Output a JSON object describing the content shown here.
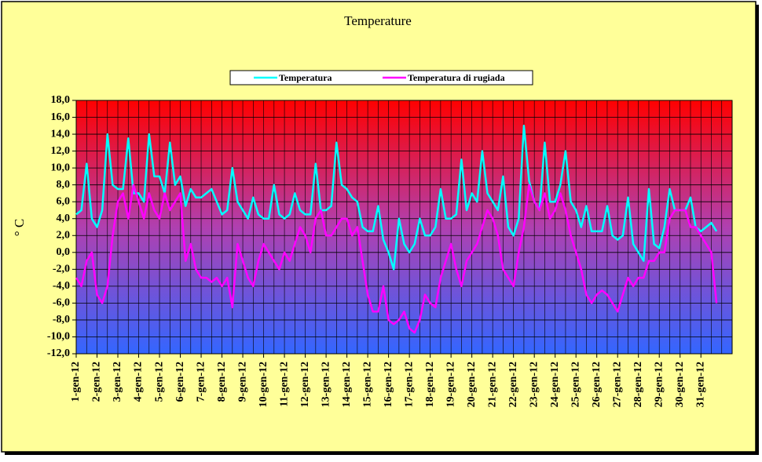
{
  "chart_data": {
    "type": "line",
    "title": "Temperature",
    "y_label": "° C",
    "categories": [
      "1-gen-12",
      null,
      null,
      null,
      "2-gen-12",
      null,
      null,
      null,
      "3-gen-12",
      null,
      null,
      null,
      "4-gen-12",
      null,
      null,
      null,
      "5-gen-12",
      null,
      null,
      null,
      "6-gen-12",
      null,
      null,
      null,
      "7-gen-12",
      null,
      null,
      null,
      "8-gen-12",
      null,
      null,
      null,
      "9-gen-12",
      null,
      null,
      null,
      "10-gen-12",
      null,
      null,
      null,
      "11-gen-12",
      null,
      null,
      null,
      "12-gen-12",
      null,
      null,
      null,
      "13-gen-12",
      null,
      null,
      null,
      "14-gen-12",
      null,
      null,
      null,
      "15-gen-12",
      null,
      null,
      null,
      "16-gen-12",
      null,
      null,
      null,
      "17-gen-12",
      null,
      null,
      null,
      "18-gen-12",
      null,
      null,
      null,
      "19-gen-12",
      null,
      null,
      null,
      "20-gen-12",
      null,
      null,
      null,
      "21-gen-12",
      null,
      null,
      null,
      "22-gen-12",
      null,
      null,
      null,
      "23-gen-12",
      null,
      null,
      null,
      "24-gen-12",
      null,
      null,
      null,
      "25-gen-12",
      null,
      null,
      null,
      "26-gen-12",
      null,
      null,
      null,
      "27-gen-12",
      null,
      null,
      null,
      "28-gen-12",
      null,
      null,
      null,
      "29-gen-12",
      null,
      null,
      null,
      "30-gen-12",
      null,
      null,
      null,
      "31-gen-12",
      null,
      null,
      null
    ],
    "series": [
      {
        "name": "Temperatura",
        "color": "#00ffff",
        "values": [
          4.5,
          5,
          10.5,
          4,
          3,
          5,
          14,
          8,
          7.5,
          7.5,
          13.5,
          7,
          7,
          6,
          14,
          9,
          9,
          7,
          13,
          8,
          9,
          5.5,
          7.5,
          6.5,
          6.5,
          7,
          7.5,
          6,
          4.5,
          5,
          10,
          6,
          5,
          4,
          6.5,
          4.5,
          4,
          4,
          8,
          4.5,
          4,
          4.5,
          7,
          5,
          4.5,
          4.5,
          10.5,
          5,
          5,
          5.5,
          13,
          8,
          7.5,
          6.5,
          6,
          3,
          2.5,
          2.5,
          5.5,
          1.5,
          0,
          -2,
          4,
          1,
          0,
          1,
          4,
          2,
          2,
          3,
          7.5,
          4,
          4,
          4.5,
          11,
          5,
          7,
          6,
          12,
          7,
          6,
          5,
          9,
          3,
          2,
          4,
          15,
          8.5,
          6,
          5,
          13,
          6,
          6,
          8,
          12,
          6,
          5,
          3,
          5.5,
          2.5,
          2.5,
          2.5,
          5.5,
          2,
          1.5,
          2,
          6.5,
          1,
          0,
          -1,
          7.5,
          1,
          0.5,
          3,
          7.5,
          5,
          5,
          5,
          6.5,
          3,
          2.5,
          3,
          3.5,
          2.5
        ]
      },
      {
        "name": "Temperatura di rugiada",
        "color": "#ff00ff",
        "values": [
          -3,
          -4,
          -1,
          0,
          -5,
          -6,
          -4,
          2,
          6,
          7,
          4,
          8,
          6,
          4,
          7,
          5,
          4,
          7,
          5,
          6,
          7,
          -1,
          1,
          -2,
          -3,
          -3,
          -3.5,
          -3,
          -4,
          -3,
          -6.5,
          1,
          -1,
          -3,
          -4,
          -1,
          1,
          0,
          -1,
          -2,
          0,
          -1,
          1,
          3,
          2,
          0,
          4,
          5,
          2,
          2,
          3,
          4,
          4,
          2,
          3,
          -1,
          -5,
          -7,
          -7,
          -4,
          -8,
          -8.5,
          -8,
          -7,
          -9,
          -9.5,
          -8,
          -5,
          -6,
          -6.5,
          -3,
          -1,
          1,
          -2,
          -4,
          -1,
          0,
          1,
          3,
          5,
          4,
          2,
          -2,
          -3,
          -4,
          0,
          3,
          8,
          6,
          5,
          7,
          4,
          5,
          7,
          5,
          2,
          0,
          -2,
          -5,
          -6,
          -5,
          -4.5,
          -5,
          -6,
          -7,
          -5,
          -3,
          -4,
          -3,
          -3,
          -1,
          -1,
          0,
          0,
          4,
          5,
          5,
          5,
          3,
          3,
          2,
          1,
          0,
          -6
        ]
      }
    ],
    "ylim": [
      -12,
      18
    ],
    "yticks": [
      {
        "value": -12,
        "label": "-12,0"
      },
      {
        "value": -10,
        "label": "-10,0"
      },
      {
        "value": -8,
        "label": "-8,0"
      },
      {
        "value": -6,
        "label": "-6,0"
      },
      {
        "value": -4,
        "label": "-4,0"
      },
      {
        "value": -2,
        "label": "-2,0"
      },
      {
        "value": 0,
        "label": "0,0"
      },
      {
        "value": 2,
        "label": "2,0"
      },
      {
        "value": 4,
        "label": "4,0"
      },
      {
        "value": 6,
        "label": "6,0"
      },
      {
        "value": 8,
        "label": "8,0"
      },
      {
        "value": 10,
        "label": "10,0"
      },
      {
        "value": 12,
        "label": "12,0"
      },
      {
        "value": 14,
        "label": "14,0"
      },
      {
        "value": 16,
        "label": "16,0"
      },
      {
        "value": 18,
        "label": "18,0"
      }
    ],
    "grid": true,
    "legend": "top"
  }
}
